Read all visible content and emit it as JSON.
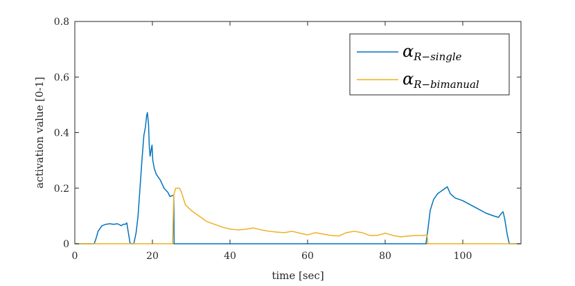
{
  "chart_data": {
    "type": "line",
    "title": "",
    "xlabel": "time [sec]",
    "ylabel": "activation value [0-1]",
    "xlim": [
      0,
      115
    ],
    "ylim": [
      0,
      0.8
    ],
    "xticks": [
      0,
      20,
      40,
      60,
      80,
      100
    ],
    "yticks": [
      0,
      0.2,
      0.4,
      0.6,
      0.8
    ],
    "xtick_labels": [
      "0",
      "20",
      "40",
      "60",
      "80",
      "100"
    ],
    "ytick_labels": [
      "0",
      "0.2",
      "0.4",
      "0.6",
      "0.8"
    ],
    "grid": false,
    "legend_position": "top-right",
    "series": [
      {
        "name": "α_{R−single}",
        "legend_symbol": "α",
        "legend_subscript": "R−single",
        "color": "#0072bd",
        "points": [
          [
            0,
            0
          ],
          [
            5,
            0
          ],
          [
            5.5,
            0.02
          ],
          [
            6,
            0.045
          ],
          [
            7,
            0.065
          ],
          [
            8,
            0.07
          ],
          [
            9,
            0.072
          ],
          [
            10,
            0.07
          ],
          [
            11,
            0.072
          ],
          [
            12,
            0.065
          ],
          [
            12.5,
            0.07
          ],
          [
            13,
            0.07
          ],
          [
            13.4,
            0.075
          ],
          [
            13.8,
            0.04
          ],
          [
            14.2,
            0.005
          ],
          [
            14.5,
            0
          ],
          [
            15.2,
            0
          ],
          [
            15.8,
            0.04
          ],
          [
            16.3,
            0.1
          ],
          [
            16.8,
            0.2
          ],
          [
            17.3,
            0.3
          ],
          [
            17.8,
            0.39
          ],
          [
            18.2,
            0.42
          ],
          [
            18.5,
            0.46
          ],
          [
            18.7,
            0.472
          ],
          [
            19.0,
            0.43
          ],
          [
            19.2,
            0.35
          ],
          [
            19.4,
            0.315
          ],
          [
            19.7,
            0.34
          ],
          [
            19.9,
            0.355
          ],
          [
            20.1,
            0.3
          ],
          [
            20.5,
            0.27
          ],
          [
            21,
            0.25
          ],
          [
            22,
            0.23
          ],
          [
            23,
            0.2
          ],
          [
            24,
            0.185
          ],
          [
            24.5,
            0.17
          ],
          [
            25.5,
            0.175
          ],
          [
            25.6,
            0
          ],
          [
            90.5,
            0
          ],
          [
            91,
            0.05
          ],
          [
            91.6,
            0.12
          ],
          [
            92.5,
            0.16
          ],
          [
            93.5,
            0.18
          ],
          [
            94.5,
            0.19
          ],
          [
            95.5,
            0.2
          ],
          [
            96,
            0.205
          ],
          [
            96.8,
            0.18
          ],
          [
            98,
            0.165
          ],
          [
            100,
            0.155
          ],
          [
            102,
            0.14
          ],
          [
            104,
            0.125
          ],
          [
            106,
            0.11
          ],
          [
            108,
            0.1
          ],
          [
            109.2,
            0.095
          ],
          [
            110,
            0.11
          ],
          [
            110.4,
            0.115
          ],
          [
            110.8,
            0.09
          ],
          [
            111.5,
            0.03
          ],
          [
            112,
            0
          ],
          [
            115,
            0
          ]
        ]
      },
      {
        "name": "α_{R−bimanual}",
        "legend_symbol": "α",
        "legend_subscript": "R−bimanual",
        "color": "#edb120",
        "points": [
          [
            0,
            0
          ],
          [
            25.2,
            0
          ],
          [
            25.5,
            0.175
          ],
          [
            26,
            0.2
          ],
          [
            27,
            0.2
          ],
          [
            27.5,
            0.185
          ],
          [
            28.5,
            0.14
          ],
          [
            30,
            0.12
          ],
          [
            32,
            0.1
          ],
          [
            34,
            0.08
          ],
          [
            36,
            0.07
          ],
          [
            38,
            0.06
          ],
          [
            40,
            0.053
          ],
          [
            42,
            0.05
          ],
          [
            44,
            0.052
          ],
          [
            46,
            0.057
          ],
          [
            48,
            0.05
          ],
          [
            50,
            0.045
          ],
          [
            52,
            0.042
          ],
          [
            54,
            0.04
          ],
          [
            56,
            0.045
          ],
          [
            58,
            0.038
          ],
          [
            60,
            0.032
          ],
          [
            62,
            0.04
          ],
          [
            64,
            0.035
          ],
          [
            66,
            0.03
          ],
          [
            68,
            0.028
          ],
          [
            70,
            0.04
          ],
          [
            72,
            0.045
          ],
          [
            74,
            0.04
          ],
          [
            76,
            0.03
          ],
          [
            78,
            0.03
          ],
          [
            80,
            0.038
          ],
          [
            82,
            0.03
          ],
          [
            84,
            0.025
          ],
          [
            86,
            0.028
          ],
          [
            88,
            0.03
          ],
          [
            90,
            0.03
          ],
          [
            90.8,
            0.032
          ],
          [
            91,
            0
          ],
          [
            115,
            0
          ]
        ]
      }
    ]
  }
}
